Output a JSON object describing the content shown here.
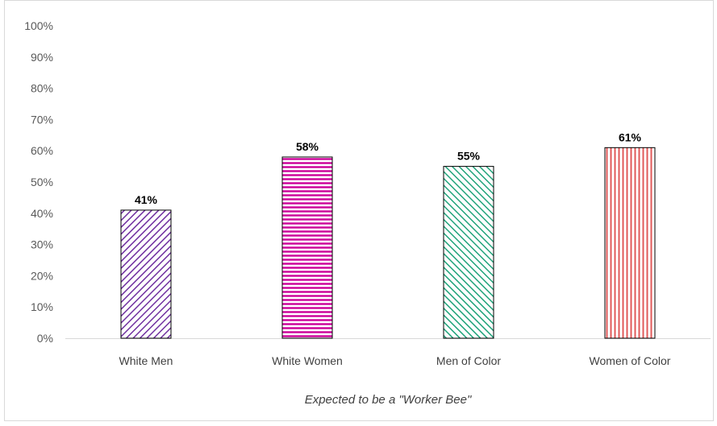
{
  "chart_data": {
    "type": "bar",
    "categories": [
      "White Men",
      "White Women",
      "Men of Color",
      "Women of Color"
    ],
    "values": [
      41,
      58,
      55,
      61
    ],
    "data_labels": [
      "41%",
      "58%",
      "55%",
      "61%"
    ],
    "title": "",
    "xlabel": "Expected to be a \"Worker Bee\"",
    "ylabel": "",
    "ylim": [
      0,
      100
    ],
    "yticks": [
      "0%",
      "10%",
      "20%",
      "30%",
      "40%",
      "50%",
      "60%",
      "70%",
      "80%",
      "90%",
      "100%"
    ],
    "grid": false,
    "legend": "none",
    "bar_colors": [
      "#7030a0",
      "#cc0099",
      "#1fa37a",
      "#e05a5a"
    ],
    "bar_patterns": [
      "diagonal-up",
      "horizontal",
      "diagonal-down",
      "vertical"
    ]
  }
}
